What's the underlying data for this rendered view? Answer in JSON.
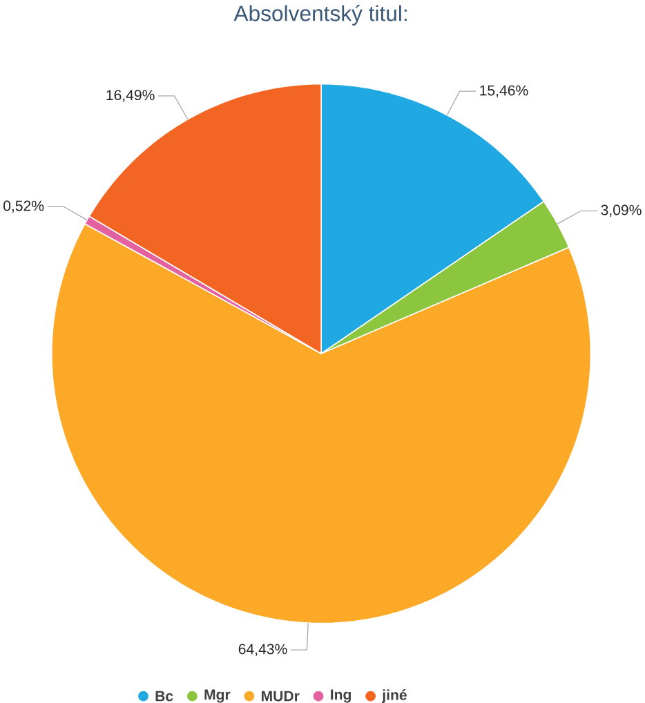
{
  "chart_data": {
    "type": "pie",
    "title": "Absolventský titul:",
    "categories": [
      "Bc",
      "Mgr",
      "MUDr",
      "Ing",
      "jiné"
    ],
    "values": [
      15.46,
      3.09,
      64.43,
      0.52,
      16.49
    ],
    "colors": [
      "#1fa8e1",
      "#8cc63e",
      "#fba926",
      "#e3619e",
      "#f26522"
    ],
    "value_labels": [
      "15,46%",
      "3,09%",
      "64,43%",
      "0,52%",
      "16,49%"
    ],
    "legend": "bottom"
  }
}
